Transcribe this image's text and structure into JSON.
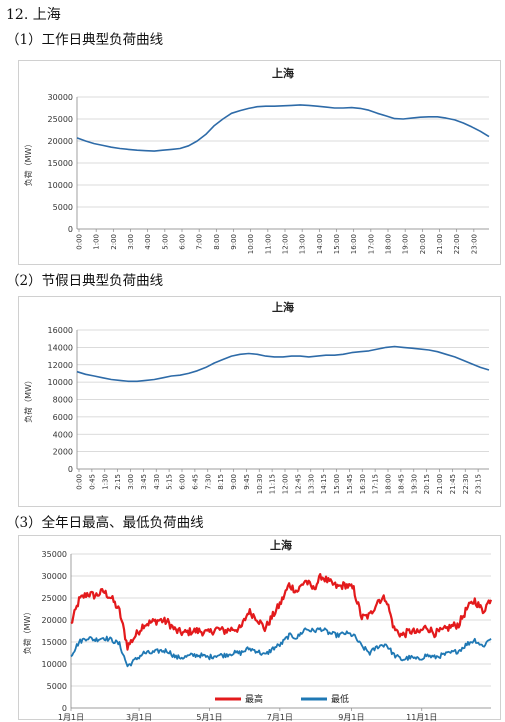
{
  "headings": {
    "main": "12. 上海",
    "c1": "（1）工作日典型负荷曲线",
    "c2": "（2）节假日典型负荷曲线",
    "c3": "（3）全年日最高、最低负荷曲线"
  },
  "chart_data": [
    {
      "type": "line",
      "title": "上海",
      "ylabel": "负荷（MW）",
      "ylim": [
        0,
        30000
      ],
      "yticks": [
        "0",
        "5000",
        "10000",
        "15000",
        "20000",
        "25000",
        "30000"
      ],
      "grid": true,
      "legend": "none",
      "x_tick_labels": [
        "0:00",
        "1:00",
        "2:00",
        "3:00",
        "4:00",
        "5:00",
        "6:00",
        "7:00",
        "8:00",
        "9:00",
        "10:00",
        "11:00",
        "12:00",
        "13:00",
        "14:00",
        "15:00",
        "16:00",
        "17:00",
        "18:00",
        "19:00",
        "20:00",
        "21:00",
        "22:00",
        "23:00"
      ],
      "colors": {
        "line": "#2e6ba8",
        "grid": "#cfcfcf"
      },
      "series": [
        {
          "x_hours": [
            0,
            0.5,
            1,
            1.5,
            2,
            2.5,
            3,
            3.5,
            4,
            4.5,
            5,
            5.5,
            6,
            6.5,
            7,
            7.5,
            8,
            8.5,
            9,
            9.5,
            10,
            10.5,
            11,
            11.5,
            12,
            12.5,
            13,
            13.5,
            14,
            14.5,
            15,
            15.5,
            16,
            16.5,
            17,
            17.5,
            18,
            18.5,
            19,
            19.5,
            20,
            20.5,
            21,
            21.5,
            22,
            22.5,
            23,
            23.5,
            24
          ],
          "values": [
            20700,
            20000,
            19400,
            19000,
            18600,
            18300,
            18100,
            17900,
            17800,
            17700,
            17900,
            18100,
            18300,
            18900,
            20000,
            21500,
            23500,
            25000,
            26300,
            26900,
            27400,
            27800,
            27900,
            27900,
            28000,
            28100,
            28200,
            28100,
            27900,
            27700,
            27500,
            27500,
            27600,
            27400,
            27000,
            26300,
            25700,
            25100,
            25000,
            25200,
            25400,
            25500,
            25500,
            25200,
            24800,
            24100,
            23200,
            22200,
            21000
          ]
        }
      ]
    },
    {
      "type": "line",
      "title": "上海",
      "ylabel": "负荷（MW）",
      "ylim": [
        0,
        16000
      ],
      "yticks": [
        "0",
        "2000",
        "4000",
        "6000",
        "8000",
        "10000",
        "12000",
        "14000",
        "16000"
      ],
      "grid": true,
      "legend": "none",
      "x_tick_labels": [
        "0:00",
        "0:45",
        "1:30",
        "2:15",
        "3:00",
        "3:45",
        "4:30",
        "5:15",
        "6:00",
        "6:45",
        "7:30",
        "8:15",
        "9:00",
        "9:45",
        "10:30",
        "11:15",
        "12:00",
        "12:45",
        "13:30",
        "14:15",
        "15:00",
        "15:45",
        "16:30",
        "17:15",
        "18:00",
        "18:45",
        "19:30",
        "20:15",
        "21:00",
        "21:45",
        "22:30",
        "23:15"
      ],
      "colors": {
        "line": "#2e6ba8",
        "grid": "#cfcfcf"
      },
      "series": [
        {
          "x_hours": [
            0,
            0.5,
            1,
            1.5,
            2,
            2.5,
            3,
            3.5,
            4,
            4.5,
            5,
            5.5,
            6,
            6.5,
            7,
            7.5,
            8,
            8.5,
            9,
            9.5,
            10,
            10.5,
            11,
            11.5,
            12,
            12.5,
            13,
            13.5,
            14,
            14.5,
            15,
            15.5,
            16,
            16.5,
            17,
            17.5,
            18,
            18.5,
            19,
            19.5,
            20,
            20.5,
            21,
            21.5,
            22,
            22.5,
            23,
            23.5,
            24
          ],
          "values": [
            11200,
            10900,
            10700,
            10500,
            10300,
            10200,
            10100,
            10100,
            10200,
            10300,
            10500,
            10700,
            10800,
            11000,
            11300,
            11700,
            12200,
            12600,
            13000,
            13200,
            13300,
            13200,
            13000,
            12900,
            12900,
            13000,
            13000,
            12900,
            13000,
            13100,
            13100,
            13200,
            13400,
            13500,
            13600,
            13800,
            14000,
            14100,
            14000,
            13900,
            13800,
            13700,
            13500,
            13200,
            12900,
            12500,
            12100,
            11700,
            11400
          ]
        }
      ]
    },
    {
      "type": "line",
      "title": "上海",
      "ylabel": "负荷（MW）",
      "ylim": [
        0,
        35000
      ],
      "yticks": [
        "0",
        "5000",
        "10000",
        "15000",
        "20000",
        "25000",
        "30000",
        "35000"
      ],
      "grid": true,
      "legend": "bottom-center",
      "x_tick_labels": [
        "1月1日",
        "3月1日",
        "5月1日",
        "7月1日",
        "9月1日",
        "11月1日"
      ],
      "x_tick_days": [
        1,
        60,
        121,
        182,
        244,
        305
      ],
      "colors": {
        "grid": "#cfcfcf"
      },
      "series": [
        {
          "name": "最高",
          "color": "#e31a1c",
          "x_days": [
            1,
            8,
            15,
            22,
            29,
            36,
            43,
            50,
            57,
            64,
            71,
            78,
            85,
            92,
            99,
            106,
            113,
            120,
            127,
            134,
            141,
            148,
            155,
            162,
            169,
            176,
            183,
            190,
            197,
            204,
            211,
            218,
            225,
            232,
            239,
            246,
            253,
            260,
            267,
            274,
            281,
            288,
            295,
            302,
            309,
            316,
            323,
            330,
            337,
            344,
            351,
            358,
            365
          ],
          "values": [
            19000,
            24500,
            26000,
            25500,
            26500,
            25000,
            22000,
            14000,
            16500,
            19000,
            19500,
            20000,
            19500,
            17500,
            17000,
            17500,
            17500,
            17000,
            18000,
            17500,
            18000,
            18000,
            22000,
            20500,
            18000,
            21000,
            24000,
            28000,
            26500,
            29000,
            27000,
            30000,
            28500,
            27500,
            28000,
            27000,
            20500,
            21000,
            24500,
            25000,
            18000,
            16500,
            17500,
            17000,
            18500,
            17000,
            17500,
            18500,
            19000,
            22500,
            24500,
            22000,
            25000
          ]
        },
        {
          "name": "最低",
          "color": "#1f78b4",
          "x_days": [
            1,
            8,
            15,
            22,
            29,
            36,
            43,
            50,
            57,
            64,
            71,
            78,
            85,
            92,
            99,
            106,
            113,
            120,
            127,
            134,
            141,
            148,
            155,
            162,
            169,
            176,
            183,
            190,
            197,
            204,
            211,
            218,
            225,
            232,
            239,
            246,
            253,
            260,
            267,
            274,
            281,
            288,
            295,
            302,
            309,
            316,
            323,
            330,
            337,
            344,
            351,
            358,
            365
          ],
          "values": [
            12000,
            15000,
            16000,
            15500,
            16000,
            15500,
            14500,
            9500,
            11000,
            12500,
            12500,
            13000,
            13000,
            11500,
            11500,
            12000,
            12000,
            11500,
            12000,
            12000,
            12500,
            12500,
            13500,
            13000,
            12000,
            13500,
            14500,
            16500,
            16000,
            18000,
            17500,
            18000,
            17000,
            16500,
            17000,
            16500,
            14000,
            12500,
            14000,
            14500,
            12000,
            11000,
            11500,
            11000,
            12000,
            11500,
            12000,
            12500,
            13000,
            14500,
            15500,
            14000,
            16000
          ]
        }
      ]
    }
  ]
}
